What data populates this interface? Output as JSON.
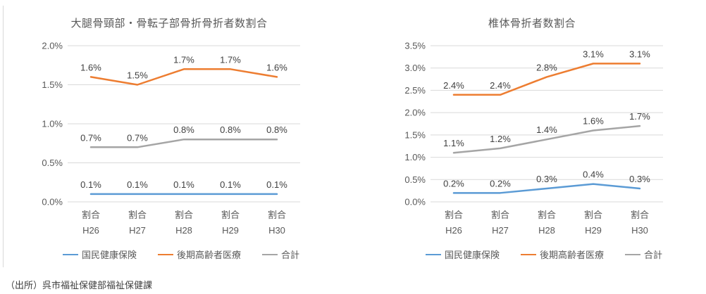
{
  "source_note": "（出所）呉市福祉保健部福祉保健課",
  "colors": {
    "blue": "#5B9BD5",
    "orange": "#ED7D31",
    "gray": "#A5A5A5",
    "grid": "#D9D9D9",
    "axis_text": "#595959",
    "label_text": "#404040",
    "title_text": "#595959",
    "panel_border": "#D9D9D9"
  },
  "chart_data": [
    {
      "type": "line",
      "title": "大腿骨頸部・骨転子部骨折骨折者数割合",
      "categories": [
        {
          "top": "割合",
          "bottom": "H26"
        },
        {
          "top": "割合",
          "bottom": "H27"
        },
        {
          "top": "割合",
          "bottom": "H28"
        },
        {
          "top": "割合",
          "bottom": "H29"
        },
        {
          "top": "割合",
          "bottom": "H30"
        }
      ],
      "yticks": [
        "0.0%",
        "0.5%",
        "1.0%",
        "1.5%",
        "2.0%"
      ],
      "ylim": [
        0,
        2.0
      ],
      "grid": true,
      "legend_position": "bottom",
      "series": [
        {
          "name": "国民健康保険",
          "color": "#5B9BD5",
          "values": [
            0.1,
            0.1,
            0.1,
            0.1,
            0.1
          ],
          "labels": [
            "0.1%",
            "0.1%",
            "0.1%",
            "0.1%",
            "0.1%"
          ]
        },
        {
          "name": "後期高齢者医療",
          "color": "#ED7D31",
          "values": [
            1.6,
            1.5,
            1.7,
            1.7,
            1.6
          ],
          "labels": [
            "1.6%",
            "1.5%",
            "1.7%",
            "1.7%",
            "1.6%"
          ]
        },
        {
          "name": "合計",
          "color": "#A5A5A5",
          "values": [
            0.7,
            0.7,
            0.8,
            0.8,
            0.8
          ],
          "labels": [
            "0.7%",
            "0.7%",
            "0.8%",
            "0.8%",
            "0.8%"
          ]
        }
      ]
    },
    {
      "type": "line",
      "title": "椎体骨折者数割合",
      "categories": [
        {
          "top": "割合",
          "bottom": "H26"
        },
        {
          "top": "割合",
          "bottom": "H27"
        },
        {
          "top": "割合",
          "bottom": "H28"
        },
        {
          "top": "割合",
          "bottom": "H29"
        },
        {
          "top": "割合",
          "bottom": "H30"
        }
      ],
      "yticks": [
        "0.0%",
        "0.5%",
        "1.0%",
        "1.5%",
        "2.0%",
        "2.5%",
        "3.0%",
        "3.5%"
      ],
      "ylim": [
        0,
        3.5
      ],
      "grid": true,
      "legend_position": "bottom",
      "series": [
        {
          "name": "国民健康保険",
          "color": "#5B9BD5",
          "values": [
            0.2,
            0.2,
            0.3,
            0.4,
            0.3
          ],
          "labels": [
            "0.2%",
            "0.2%",
            "0.3%",
            "0.4%",
            "0.3%"
          ]
        },
        {
          "name": "後期高齢者医療",
          "color": "#ED7D31",
          "values": [
            2.4,
            2.4,
            2.8,
            3.1,
            3.1
          ],
          "labels": [
            "2.4%",
            "2.4%",
            "2.8%",
            "3.1%",
            "3.1%"
          ]
        },
        {
          "name": "合計",
          "color": "#A5A5A5",
          "values": [
            1.1,
            1.2,
            1.4,
            1.6,
            1.7
          ],
          "labels": [
            "1.1%",
            "1.2%",
            "1.4%",
            "1.6%",
            "1.7%"
          ]
        }
      ]
    }
  ]
}
